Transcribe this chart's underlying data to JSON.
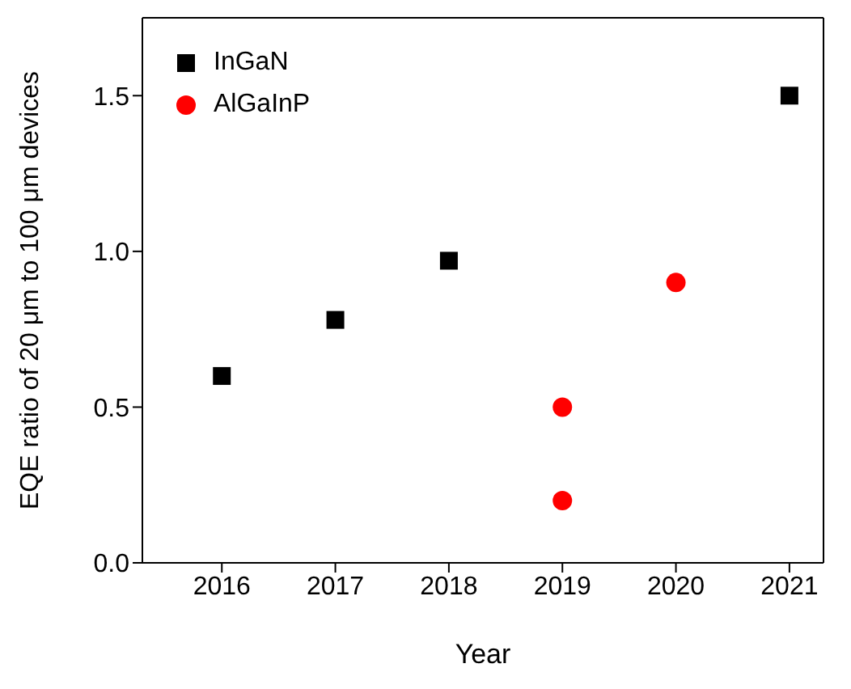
{
  "chart_data": {
    "type": "scatter",
    "xlabel": "Year",
    "ylabel": "EQE ratio of 20 μm to 100 μm devices",
    "xlim": [
      2015.3,
      2021.3
    ],
    "xticks": [
      2016,
      2017,
      2018,
      2019,
      2020,
      2021
    ],
    "ylim": [
      0,
      1.75
    ],
    "yticks": [
      {
        "value": 0,
        "label": "0.0"
      },
      0.5,
      {
        "value": 1,
        "label": "1.0"
      },
      1.5
    ],
    "legend": "top left",
    "series": [
      {
        "name": "InGaN",
        "color": "#000000",
        "marker": "square",
        "x": [
          2016,
          2017,
          2018,
          2021
        ],
        "values": [
          0.6,
          0.78,
          0.97,
          1.5
        ]
      },
      {
        "name": "AlGaInP",
        "color": "#ff0000",
        "marker": "circle",
        "x": [
          2019,
          2019,
          2020
        ],
        "values": [
          0.5,
          0.2,
          0.9
        ]
      }
    ]
  }
}
